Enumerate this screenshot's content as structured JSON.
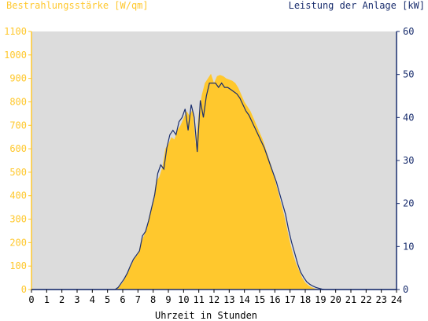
{
  "chart_data": {
    "type": "area",
    "title_left": "Bestrahlungsstärke [W/qm]",
    "title_right": "Leistung der Anlage [kW]",
    "xlabel": "Uhrzeit in Stunden",
    "xlim": [
      0,
      24
    ],
    "ylim_left": [
      0,
      1100
    ],
    "ylim_right": [
      0,
      60
    ],
    "x_ticks": [
      "0",
      "1",
      "2",
      "3",
      "4",
      "5",
      "6",
      "7",
      "8",
      "9",
      "10",
      "11",
      "12",
      "13",
      "14",
      "15",
      "16",
      "17",
      "18",
      "19",
      "20",
      "21",
      "22",
      "23",
      "24"
    ],
    "y_ticks_left": [
      "0",
      "100",
      "200",
      "300",
      "400",
      "500",
      "600",
      "700",
      "800",
      "900",
      "1000",
      "1100"
    ],
    "y_ticks_right": [
      "0",
      "10",
      "20",
      "30",
      "40",
      "50",
      "60"
    ],
    "grid": false,
    "colors": {
      "plot_background": "#dcdcdc",
      "irradiance": "#ffc82d",
      "power": "#1a2e6e",
      "axis_left": "#ffc82d",
      "axis_right": "#1a2e6e"
    },
    "series": [
      {
        "axis": "left",
        "style": "area",
        "x": [
          0,
          5.4,
          5.6,
          5.8,
          6.0,
          6.2,
          6.4,
          6.6,
          6.8,
          7.0,
          7.2,
          7.4,
          7.6,
          7.8,
          8.0,
          8.2,
          8.4,
          8.6,
          8.8,
          9.0,
          9.2,
          9.4,
          9.6,
          9.8,
          10.0,
          10.2,
          10.4,
          10.6,
          10.8,
          11.0,
          11.2,
          11.4,
          11.6,
          11.8,
          12.0,
          12.2,
          12.4,
          12.6,
          12.8,
          13.0,
          13.2,
          13.4,
          13.6,
          13.8,
          14.0,
          14.2,
          14.4,
          14.6,
          14.8,
          15.0,
          15.2,
          15.4,
          15.6,
          15.8,
          16.0,
          16.2,
          16.4,
          16.6,
          16.8,
          17.0,
          17.2,
          17.4,
          17.6,
          17.8,
          18.0,
          18.2,
          18.4,
          18.6,
          18.8,
          19.0,
          19.2,
          19.4,
          24
        ],
        "values": [
          0,
          0,
          5,
          15,
          30,
          55,
          80,
          110,
          135,
          150,
          200,
          230,
          270,
          330,
          380,
          460,
          480,
          520,
          600,
          620,
          650,
          640,
          680,
          700,
          730,
          760,
          740,
          770,
          620,
          750,
          830,
          880,
          900,
          920,
          880,
          910,
          915,
          910,
          900,
          895,
          890,
          880,
          860,
          830,
          800,
          780,
          760,
          730,
          700,
          670,
          640,
          600,
          560,
          520,
          470,
          420,
          370,
          320,
          260,
          200,
          150,
          110,
          80,
          50,
          30,
          18,
          10,
          5,
          2,
          0,
          0,
          0,
          0
        ]
      },
      {
        "axis": "right",
        "style": "line",
        "x": [
          0,
          5.5,
          5.7,
          5.9,
          6.1,
          6.3,
          6.5,
          6.7,
          6.9,
          7.1,
          7.3,
          7.5,
          7.7,
          7.9,
          8.1,
          8.3,
          8.5,
          8.7,
          8.9,
          9.1,
          9.3,
          9.5,
          9.7,
          9.9,
          10.1,
          10.3,
          10.5,
          10.7,
          10.9,
          11.1,
          11.3,
          11.5,
          11.7,
          11.9,
          12.1,
          12.3,
          12.5,
          12.7,
          12.9,
          13.1,
          13.3,
          13.5,
          13.7,
          13.9,
          14.1,
          14.3,
          14.5,
          14.7,
          14.9,
          15.1,
          15.3,
          15.5,
          15.7,
          15.9,
          16.1,
          16.3,
          16.5,
          16.7,
          16.9,
          17.1,
          17.3,
          17.5,
          17.7,
          17.9,
          18.1,
          18.3,
          18.5,
          18.7,
          18.9,
          19.1,
          19.3,
          19.5,
          24
        ],
        "values": [
          0,
          0,
          0.5,
          1.5,
          2.5,
          3.8,
          5.5,
          7.0,
          8.0,
          9.0,
          12.5,
          13.5,
          16,
          19,
          22,
          27,
          29,
          28,
          33,
          36,
          37,
          36,
          39,
          40,
          42,
          37,
          43,
          40,
          32,
          44,
          40,
          45,
          48,
          48,
          48,
          47,
          48,
          47,
          47,
          46.5,
          46,
          45.5,
          44.5,
          43,
          41.5,
          40.5,
          39,
          37.5,
          36,
          34.5,
          33,
          31,
          29,
          27,
          25,
          22.5,
          20,
          17.5,
          14,
          11,
          8.5,
          6,
          4,
          2.8,
          1.8,
          1.2,
          0.8,
          0.5,
          0.3,
          0.1,
          0,
          0,
          0
        ]
      }
    ]
  }
}
